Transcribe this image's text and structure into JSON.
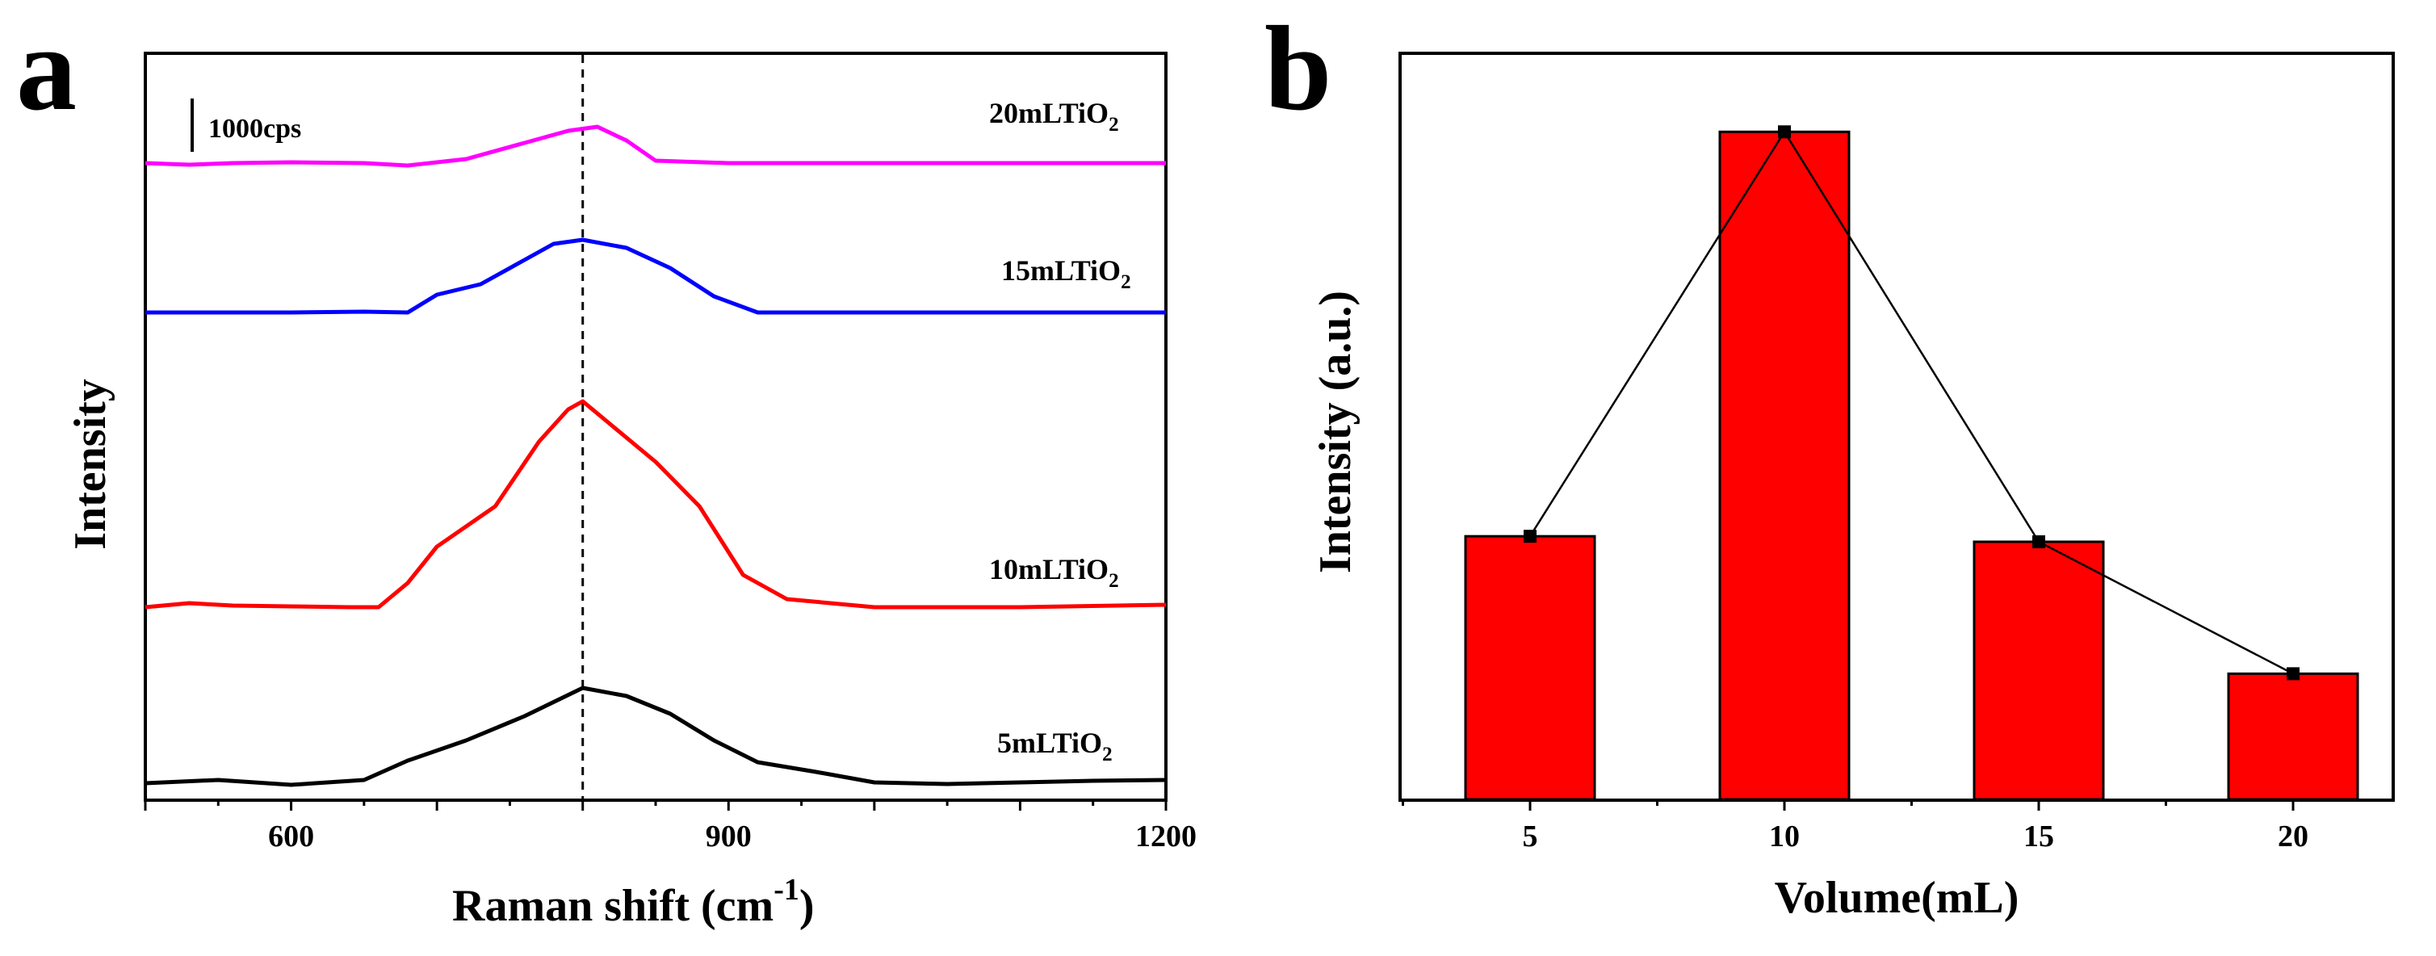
{
  "chart_data": [
    {
      "panel": "a",
      "type": "line",
      "xlabel": "Raman shift (cm",
      "xlabel_sup": "-1",
      "xlabel_close": ")",
      "ylabel": "Intensity",
      "xlim": [
        500,
        1200
      ],
      "xticks": [
        600,
        900,
        1200
      ],
      "reference_line": 800,
      "scale_bar_label": "1000cps",
      "series": [
        {
          "name": "5mLTiO2",
          "label_main": "5mLTiO",
          "label_sub": "2",
          "color": "#000000",
          "baseline": 0,
          "offset": 0,
          "points": [
            [
              500,
              2
            ],
            [
              550,
              6
            ],
            [
              600,
              0
            ],
            [
              650,
              6
            ],
            [
              680,
              30
            ],
            [
              720,
              55
            ],
            [
              760,
              85
            ],
            [
              800,
              120
            ],
            [
              830,
              110
            ],
            [
              860,
              88
            ],
            [
              890,
              55
            ],
            [
              920,
              28
            ],
            [
              960,
              16
            ],
            [
              1000,
              3
            ],
            [
              1050,
              1
            ],
            [
              1100,
              3
            ],
            [
              1150,
              5
            ],
            [
              1200,
              6
            ]
          ]
        },
        {
          "name": "10mLTiO2",
          "label_main": "10mLTiO",
          "label_sub": "2",
          "color": "#ff0000",
          "baseline": 0,
          "offset": 220,
          "points": [
            [
              500,
              0
            ],
            [
              530,
              5
            ],
            [
              560,
              2
            ],
            [
              600,
              1
            ],
            [
              640,
              0
            ],
            [
              660,
              0
            ],
            [
              680,
              30
            ],
            [
              700,
              75
            ],
            [
              740,
              125
            ],
            [
              770,
              205
            ],
            [
              790,
              245
            ],
            [
              800,
              255
            ],
            [
              820,
              225
            ],
            [
              850,
              180
            ],
            [
              880,
              125
            ],
            [
              910,
              40
            ],
            [
              940,
              10
            ],
            [
              1000,
              0
            ],
            [
              1100,
              0
            ],
            [
              1200,
              3
            ]
          ]
        },
        {
          "name": "15mLTiO2",
          "label_main": "15mLTiO",
          "label_sub": "2",
          "color": "#0000ff",
          "baseline": 0,
          "offset": 585,
          "points": [
            [
              500,
              0
            ],
            [
              550,
              0
            ],
            [
              600,
              0
            ],
            [
              650,
              1
            ],
            [
              680,
              0
            ],
            [
              700,
              22
            ],
            [
              730,
              35
            ],
            [
              760,
              65
            ],
            [
              780,
              85
            ],
            [
              800,
              90
            ],
            [
              830,
              80
            ],
            [
              860,
              55
            ],
            [
              890,
              20
            ],
            [
              920,
              0
            ],
            [
              1000,
              0
            ],
            [
              1100,
              0
            ],
            [
              1200,
              0
            ]
          ]
        },
        {
          "name": "20mLTiO2",
          "label_main": "20mLTiO",
          "label_sub": "2",
          "color": "#ff00ff",
          "baseline": 0,
          "offset": 770,
          "points": [
            [
              500,
              0
            ],
            [
              530,
              -2
            ],
            [
              560,
              0
            ],
            [
              600,
              1
            ],
            [
              650,
              0
            ],
            [
              680,
              -3
            ],
            [
              720,
              5
            ],
            [
              760,
              25
            ],
            [
              790,
              40
            ],
            [
              810,
              45
            ],
            [
              830,
              28
            ],
            [
              850,
              3
            ],
            [
              900,
              0
            ],
            [
              1000,
              0
            ],
            [
              1100,
              0
            ],
            [
              1200,
              0
            ]
          ]
        }
      ]
    },
    {
      "panel": "b",
      "type": "bar",
      "xlabel": "Volume(mL)",
      "ylabel": "Intensity (a.u.)",
      "categories": [
        "5",
        "10",
        "15",
        "20"
      ],
      "values": [
        335,
        850,
        328,
        160
      ],
      "ylim": [
        0,
        950
      ],
      "bar_color": "#ff0000",
      "line_overlay": true
    }
  ]
}
